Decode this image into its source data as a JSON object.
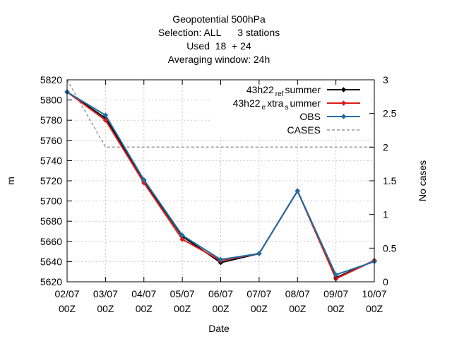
{
  "chart_data": {
    "type": "line",
    "title_lines": [
      "Geopotential 500hPa",
      "Selection: ALL      3 stations",
      "Used  18  + 24",
      "Averaging window: 24h"
    ],
    "xlabel": "Date",
    "ylabel": "m",
    "y2label": "No cases",
    "x_ticks": [
      {
        "d": "02/07",
        "t": "00Z"
      },
      {
        "d": "03/07",
        "t": "00Z"
      },
      {
        "d": "04/07",
        "t": "00Z"
      },
      {
        "d": "05/07",
        "t": "00Z"
      },
      {
        "d": "06/07",
        "t": "00Z"
      },
      {
        "d": "07/07",
        "t": "00Z"
      },
      {
        "d": "08/07",
        "t": "00Z"
      },
      {
        "d": "09/07",
        "t": "00Z"
      },
      {
        "d": "10/07",
        "t": "00Z"
      }
    ],
    "ylim": [
      5620,
      5820
    ],
    "yticks": [
      5620,
      5640,
      5660,
      5680,
      5700,
      5720,
      5740,
      5760,
      5780,
      5800,
      5820
    ],
    "y2lim": [
      0,
      3
    ],
    "y2ticks": [
      0,
      0.5,
      1,
      1.5,
      2,
      2.5,
      3
    ],
    "grid": true,
    "legend_position": "top-right",
    "series": [
      {
        "name": "43h22_ref_summer",
        "legend": {
          "base": "43h22",
          "sub1": "ref",
          "mid": "s",
          "sub2": "",
          "tail": "ummer"
        },
        "color": "#000000",
        "axis": "y",
        "values": [
          5808,
          5782,
          5720,
          5665,
          5639,
          5648,
          5710,
          5624,
          5641
        ]
      },
      {
        "name": "43h22_extra_summer",
        "legend": {
          "base": "43h22",
          "sub1": "e",
          "mid": "xtra",
          "sub2": "s",
          "tail": "ummer"
        },
        "color": "#dd1c1c",
        "axis": "y",
        "values": [
          5808,
          5780,
          5718,
          5662,
          5641,
          5648,
          5710,
          5623,
          5641
        ]
      },
      {
        "name": "OBS",
        "legend": {
          "base": "OBS",
          "sub1": "",
          "mid": "",
          "sub2": "",
          "tail": ""
        },
        "color": "#1d6fa5",
        "axis": "y",
        "values": [
          5808,
          5785,
          5721,
          5666,
          5642,
          5648,
          5710,
          5627,
          5640
        ]
      },
      {
        "name": "CASES",
        "legend": {
          "base": "CASES",
          "sub1": "",
          "mid": "",
          "sub2": "",
          "tail": ""
        },
        "color": "#999999",
        "axis": "y2",
        "dashed": true,
        "values": [
          3,
          2,
          2,
          2,
          2,
          2,
          2,
          2,
          2
        ]
      }
    ]
  }
}
